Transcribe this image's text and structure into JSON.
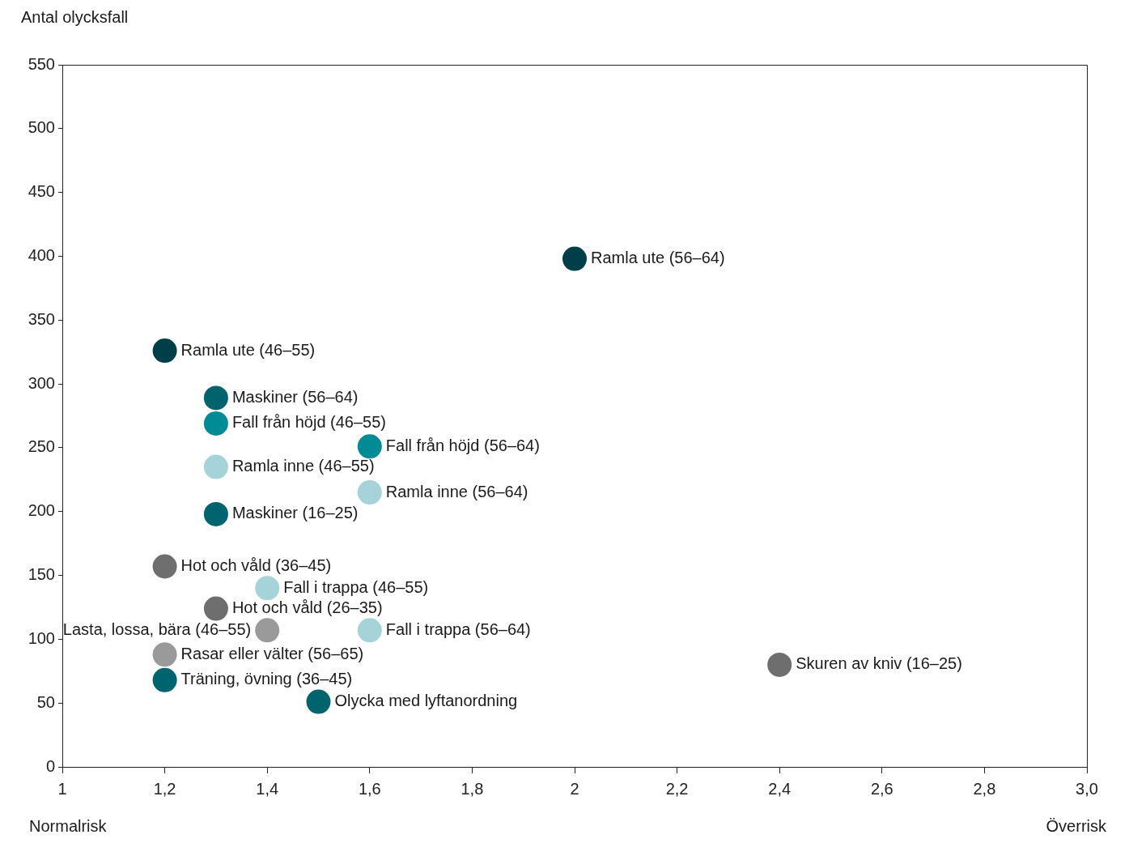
{
  "chart_data": {
    "type": "scatter",
    "ylabel": "Antal olycksfall",
    "marker": "circle",
    "grid": false,
    "legend": false,
    "xlim": [
      1,
      3
    ],
    "xticks": [
      1,
      {
        "value": 1.2,
        "label": "1,2"
      },
      {
        "value": 1.4,
        "label": "1,4"
      },
      {
        "value": 1.6,
        "label": "1,6"
      },
      {
        "value": 1.8,
        "label": "1,8"
      },
      2,
      {
        "value": 2.2,
        "label": "2,2"
      },
      {
        "value": 2.4,
        "label": "2,4"
      },
      {
        "value": 2.6,
        "label": "2,6"
      },
      {
        "value": 2.8,
        "label": "2,8"
      },
      {
        "value": 3,
        "label": "3,0"
      }
    ],
    "ylim": [
      0,
      550
    ],
    "yticks": [
      0,
      50,
      100,
      150,
      200,
      250,
      300,
      350,
      400,
      450,
      500,
      550
    ],
    "annotations": [
      "Normalrisk",
      "Överrisk"
    ],
    "series": [
      {
        "name": "Ramla ute (56–64)",
        "color": "#003f4a",
        "x": [
          2.0
        ],
        "values": [
          398
        ]
      },
      {
        "name": "Ramla ute (46–55)",
        "color": "#003f4a",
        "x": [
          1.2
        ],
        "values": [
          326
        ]
      },
      {
        "name": "Maskiner (56–64)",
        "color": "#00646e",
        "x": [
          1.3
        ],
        "values": [
          289
        ]
      },
      {
        "name": "Fall från höjd (46–55)",
        "color": "#008b95",
        "x": [
          1.3
        ],
        "values": [
          269
        ]
      },
      {
        "name": "Fall från höjd (56–64)",
        "color": "#008b95",
        "x": [
          1.6
        ],
        "values": [
          251
        ]
      },
      {
        "name": "Ramla inne (46–55)",
        "color": "#a5d3d7",
        "x": [
          1.3
        ],
        "values": [
          235
        ]
      },
      {
        "name": "Ramla inne (56–64)",
        "color": "#a5d3d7",
        "x": [
          1.6
        ],
        "values": [
          215
        ]
      },
      {
        "name": "Maskiner (16–25)",
        "color": "#00646e",
        "x": [
          1.3
        ],
        "values": [
          198
        ]
      },
      {
        "name": "Hot och våld (36–45)",
        "color": "#6e6e6e",
        "x": [
          1.2
        ],
        "values": [
          157
        ]
      },
      {
        "name": "Fall i trappa (46–55)",
        "color": "#a5d3d7",
        "x": [
          1.4
        ],
        "values": [
          140
        ]
      },
      {
        "name": "Hot och våld (26–35)",
        "color": "#6e6e6e",
        "x": [
          1.3
        ],
        "values": [
          124
        ]
      },
      {
        "name": "Lasta, lossa, bära (46–55)",
        "color": "#9a9a9a",
        "x": [
          1.4
        ],
        "values": [
          107
        ]
      },
      {
        "name": "Fall i trappa (56–64)",
        "color": "#a5d3d7",
        "x": [
          1.6
        ],
        "values": [
          107
        ]
      },
      {
        "name": "Rasar eller välter (56–65)",
        "color": "#9a9a9a",
        "x": [
          1.2
        ],
        "values": [
          88
        ]
      },
      {
        "name": "Träning, övning (36–45)",
        "color": "#00646e",
        "x": [
          1.2
        ],
        "values": [
          68
        ]
      },
      {
        "name": "Olycka med lyftanordning",
        "color": "#00646e",
        "x": [
          1.5
        ],
        "values": [
          51
        ]
      },
      {
        "name": "Skuren av kniv (16–25)",
        "color": "#6e6e6e",
        "x": [
          2.4
        ],
        "values": [
          80
        ]
      }
    ]
  }
}
